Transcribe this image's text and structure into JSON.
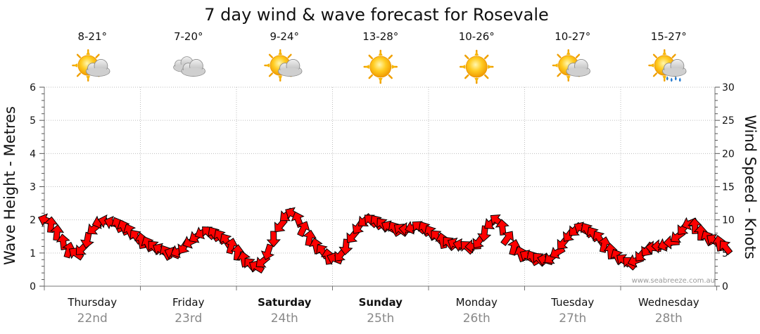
{
  "chart_data": {
    "type": "line",
    "title": "7 day wind & wave forecast for Rosevale",
    "ylabel_left": "Wave Height - Metres",
    "ylabel_right": "Wind Speed - Knots",
    "ylim_left": [
      0,
      6
    ],
    "ylim_right": [
      0,
      30
    ],
    "yticks_left": [
      "0",
      "1",
      "2",
      "3",
      "4",
      "5",
      "6"
    ],
    "yticks_right": [
      "0",
      "5",
      "10",
      "15",
      "20",
      "25",
      "30"
    ],
    "days": [
      {
        "name": "Thursday",
        "date": "22nd",
        "bold": false,
        "temp": "8-21°",
        "icon": "partly-cloudy-icon"
      },
      {
        "name": "Friday",
        "date": "23rd",
        "bold": false,
        "temp": "7-20°",
        "icon": "cloudy-icon"
      },
      {
        "name": "Saturday",
        "date": "24th",
        "bold": true,
        "temp": "9-24°",
        "icon": "partly-cloudy-icon"
      },
      {
        "name": "Sunday",
        "date": "25th",
        "bold": true,
        "temp": "13-28°",
        "icon": "sunny-icon"
      },
      {
        "name": "Monday",
        "date": "26th",
        "bold": false,
        "temp": "10-26°",
        "icon": "sunny-icon"
      },
      {
        "name": "Tuesday",
        "date": "27th",
        "bold": false,
        "temp": "10-27°",
        "icon": "partly-cloudy-icon"
      },
      {
        "name": "Wednesday",
        "date": "28th",
        "bold": false,
        "temp": "15-27°",
        "icon": "rain-showers-icon"
      }
    ],
    "wind_knots": [
      10.0,
      9.4,
      8.2,
      6.8,
      5.6,
      5.0,
      5.5,
      6.8,
      8.6,
      9.6,
      9.8,
      9.6,
      9.4,
      9.0,
      8.4,
      7.6,
      7.0,
      6.5,
      6.0,
      5.6,
      5.2,
      5.0,
      5.2,
      5.8,
      6.6,
      7.4,
      8.0,
      8.2,
      8.0,
      7.6,
      7.0,
      6.2,
      5.2,
      4.2,
      3.4,
      3.0,
      3.6,
      5.0,
      7.0,
      9.0,
      10.6,
      11.0,
      10.2,
      8.8,
      7.4,
      6.2,
      5.4,
      4.6,
      4.2,
      4.6,
      5.8,
      7.4,
      8.8,
      9.8,
      10.0,
      9.8,
      9.4,
      9.0,
      8.8,
      8.6,
      8.6,
      8.8,
      9.0,
      8.8,
      8.2,
      7.6,
      7.0,
      6.6,
      6.4,
      6.2,
      6.0,
      6.0,
      6.6,
      7.8,
      9.4,
      10.0,
      9.0,
      7.4,
      6.0,
      5.0,
      4.6,
      4.4,
      4.2,
      4.0,
      4.2,
      5.0,
      6.4,
      7.6,
      8.4,
      8.8,
      8.6,
      8.0,
      7.4,
      6.4,
      5.4,
      4.6,
      4.0,
      3.6,
      3.8,
      4.6,
      5.4,
      5.8,
      6.0,
      6.2,
      6.6,
      7.4,
      8.6,
      9.4,
      9.2,
      8.2,
      7.4,
      7.0,
      6.6,
      6.0
    ]
  }
}
